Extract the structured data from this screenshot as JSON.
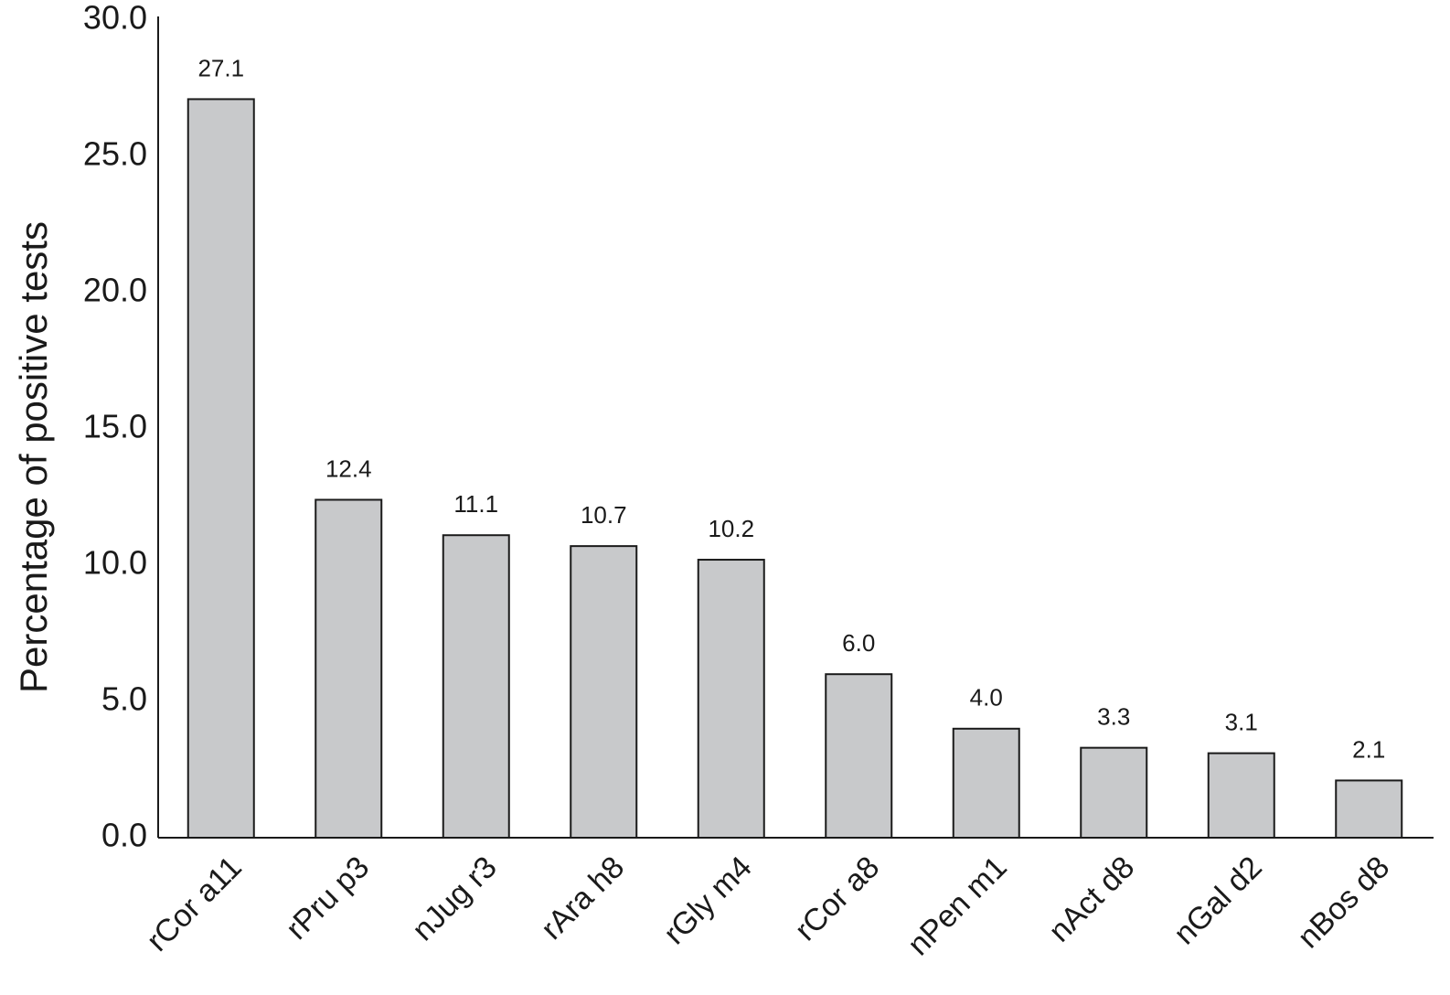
{
  "chart_data": {
    "type": "bar",
    "y_label": "Percentage of positive tests",
    "categories": [
      "rCor a11",
      "rPru p3",
      "nJug r3",
      "rAra h8",
      "rGly m4",
      "rCor a8",
      "nPen m1",
      "nAct d8",
      "nGal d2",
      "nBos d8"
    ],
    "values": [
      27.1,
      12.4,
      11.1,
      10.7,
      10.2,
      6.0,
      4.0,
      3.3,
      3.1,
      2.1
    ],
    "value_labels": [
      "27.1",
      "12.4",
      "11.1",
      "10.7",
      "10.2",
      "6.0",
      "4.0",
      "3.3",
      "3.1",
      "2.1"
    ],
    "color": "#c8c9cb",
    "ylim": [
      0,
      30
    ],
    "yticks": [
      {
        "value": 0,
        "label": "0.0"
      },
      {
        "value": 5,
        "label": "5.0"
      },
      {
        "value": 10,
        "label": "10.0"
      },
      {
        "value": 15,
        "label": "15.0"
      },
      {
        "value": 20,
        "label": "20.0"
      },
      {
        "value": 25,
        "label": "25.0"
      },
      {
        "value": 30,
        "label": "30.0"
      }
    ],
    "grid": false
  }
}
